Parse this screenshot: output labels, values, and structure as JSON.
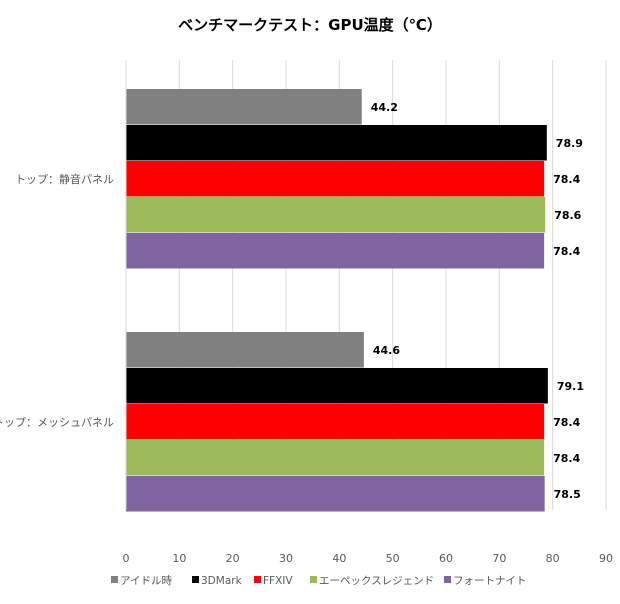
{
  "chart_data": {
    "type": "bar",
    "orientation": "horizontal",
    "title": "ベンチマークテスト：GPU温度（℃）",
    "xlabel": "",
    "ylabel": "",
    "xlim": [
      0,
      90
    ],
    "x_ticks": [
      0,
      10,
      20,
      30,
      40,
      50,
      60,
      70,
      80,
      90
    ],
    "grid": "vertical",
    "legend_position": "bottom",
    "categories": [
      "トップ：静音パネル",
      "トップ：メッシュパネル"
    ],
    "series": [
      {
        "name": "アイドル時",
        "color": "#808080",
        "values": [
          44.2,
          44.6
        ]
      },
      {
        "name": "3DMark",
        "color": "#000000",
        "values": [
          78.9,
          79.1
        ]
      },
      {
        "name": "FFXIV",
        "color": "#ff0000",
        "values": [
          78.4,
          78.4
        ]
      },
      {
        "name": "エーペックスレジェンド",
        "color": "#9bbb59",
        "values": [
          78.6,
          78.4
        ]
      },
      {
        "name": "フォートナイト",
        "color": "#8064a2",
        "values": [
          78.4,
          78.5
        ]
      }
    ]
  }
}
